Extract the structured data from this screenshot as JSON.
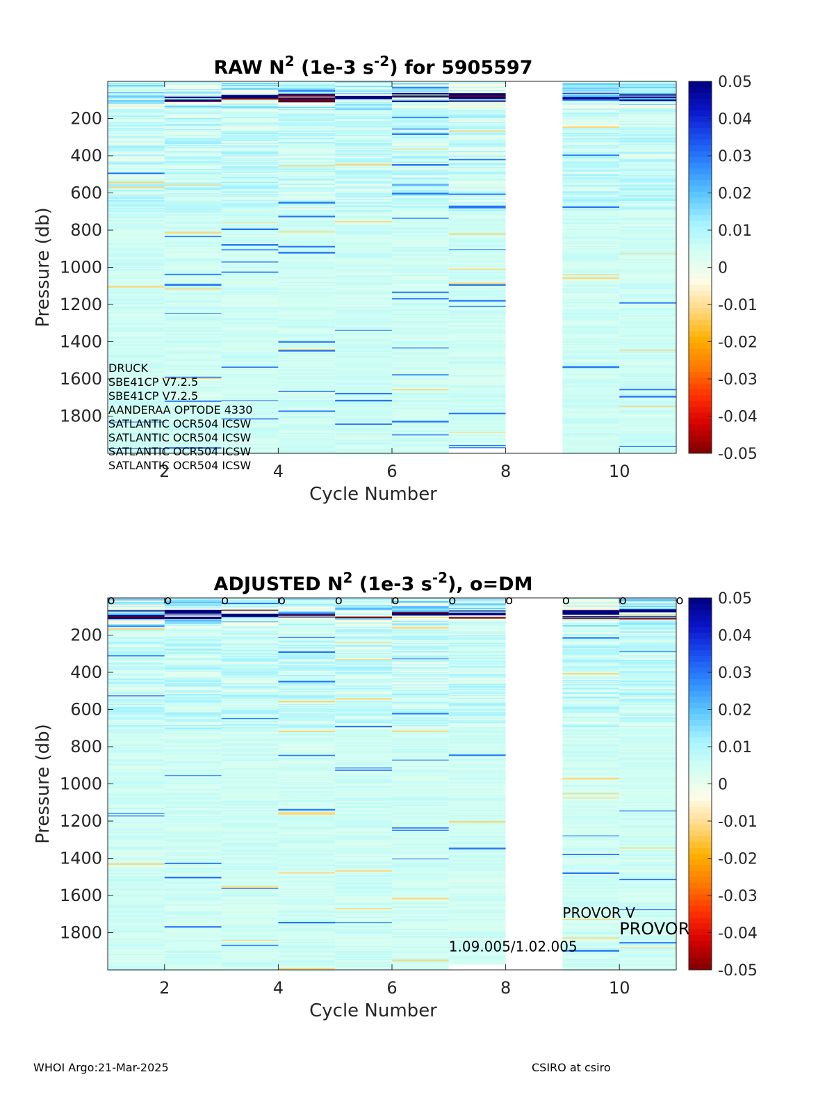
{
  "figure": {
    "footer_left": "WHOI Argo:21-Mar-2025",
    "footer_right": "CSIRO at csiro"
  },
  "colormap": [
    "#7f0000",
    "#d40000",
    "#ff3000",
    "#ff7a00",
    "#ffb000",
    "#ffd980",
    "#fffbe8",
    "#d4fff2",
    "#a8f4ff",
    "#5ec8ff",
    "#2f8fff",
    "#1a4ff0",
    "#0a14c8",
    "#00007f"
  ],
  "chart_data": [
    {
      "type": "heatmap",
      "title_main": "RAW N",
      "title_sup": "2",
      "title_mid": " (1e-3 s",
      "title_sup2": "-2",
      "title_end": ") for 5905597",
      "xlabel": "Cycle Number",
      "ylabel": "Pressure (db)",
      "xlim": [
        1,
        11
      ],
      "ylim": [
        0,
        2000
      ],
      "y_reversed": true,
      "x_ticks": [
        2,
        4,
        6,
        8,
        10
      ],
      "y_ticks": [
        200,
        400,
        600,
        800,
        1000,
        1200,
        1400,
        1600,
        1800
      ],
      "cycles": [
        1,
        2,
        3,
        4,
        5,
        6,
        7,
        8,
        9,
        10
      ],
      "missing_cycles": [
        8
      ],
      "clim": [
        -0.05,
        0.05
      ],
      "colorbar_ticks": [
        "0.05",
        "0.04",
        "0.03",
        "0.02",
        "0.01",
        "0",
        "-0.01",
        "-0.02",
        "-0.03",
        "-0.04",
        "-0.05"
      ],
      "annotations": [
        "DRUCK",
        "SBE41CP V7.2.5",
        "SBE41CP V7.2.5",
        "AANDERAA OPTODE 4330",
        "SATLANTIC OCR504 ICSW",
        "SATLANTIC OCR504 ICSW",
        "SATLANTIC OCR504 ICSW",
        "SATLANTIC OCR504 ICSW"
      ],
      "dm_markers": [],
      "extra_labels": []
    },
    {
      "type": "heatmap",
      "title_main": "ADJUSTED N",
      "title_sup": "2",
      "title_mid": " (1e-3 s",
      "title_sup2": "-2",
      "title_end": "), o=DM",
      "xlabel": "Cycle Number",
      "ylabel": "Pressure (db)",
      "xlim": [
        1,
        11
      ],
      "ylim": [
        0,
        2000
      ],
      "y_reversed": true,
      "x_ticks": [
        2,
        4,
        6,
        8,
        10
      ],
      "y_ticks": [
        200,
        400,
        600,
        800,
        1000,
        1200,
        1400,
        1600,
        1800
      ],
      "cycles": [
        1,
        2,
        3,
        4,
        5,
        6,
        7,
        8,
        9,
        10
      ],
      "missing_cycles": [
        8
      ],
      "clim": [
        -0.05,
        0.05
      ],
      "colorbar_ticks": [
        "0.05",
        "0.04",
        "0.03",
        "0.02",
        "0.01",
        "0",
        "-0.01",
        "-0.02",
        "-0.03",
        "-0.04",
        "-0.05"
      ],
      "annotations": [],
      "dm_marker_label": "o",
      "dm_markers": [
        1,
        2,
        3,
        4,
        5,
        6,
        7,
        8,
        9,
        10,
        11
      ],
      "extra_labels": [
        {
          "text": "PROVOR V",
          "x": 9.0,
          "y": 1720,
          "size": "small"
        },
        {
          "text": "PROVOR",
          "x": 10.0,
          "y": 1810,
          "size": "large"
        },
        {
          "text": "1.09.005/1.02.005",
          "x": 7.0,
          "y": 1900,
          "size": "small"
        }
      ]
    }
  ]
}
